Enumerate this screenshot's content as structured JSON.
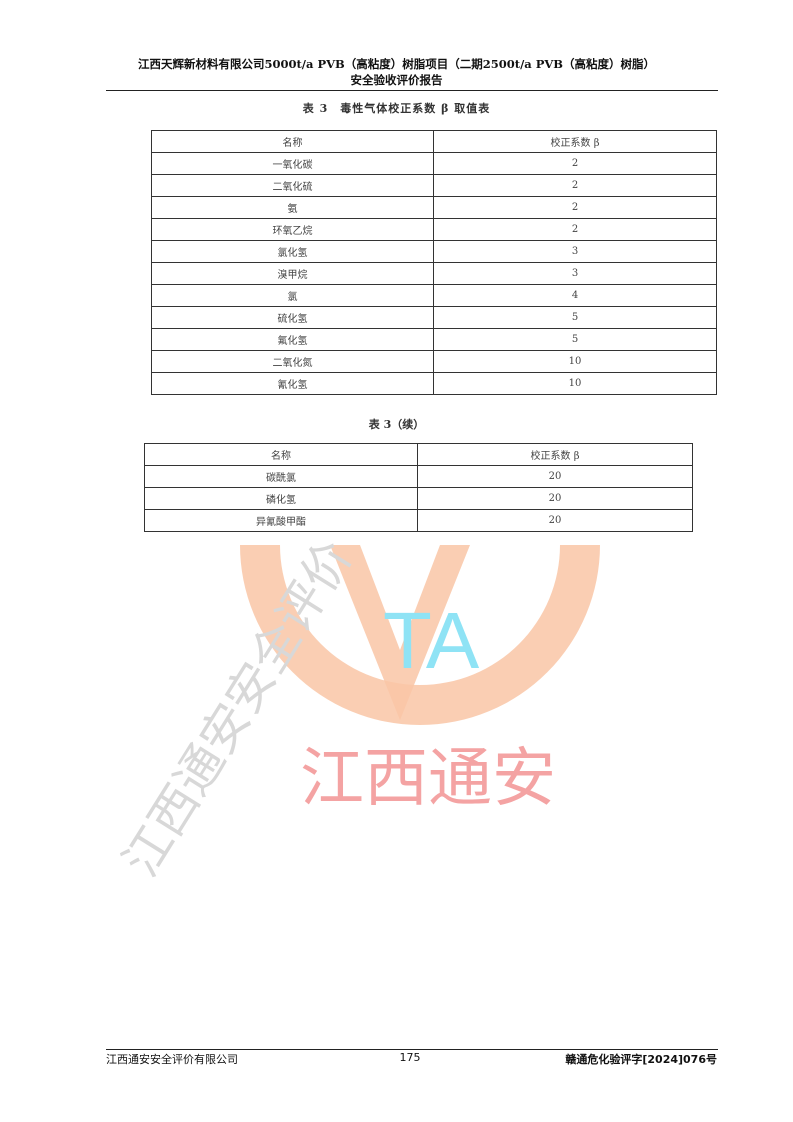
{
  "header": {
    "line1": "江西天辉新材料有限公司5000t/a PVB（高粘度）树脂项目（二期2500t/a PVB（高粘度）树脂）",
    "line2": "安全验收评价报告"
  },
  "table1": {
    "caption": "表 3　毒性气体校正系数 β 取值表",
    "columns": [
      "名称",
      "校正系数 β"
    ],
    "rows": [
      [
        "一氧化碳",
        "2"
      ],
      [
        "二氧化硫",
        "2"
      ],
      [
        "氨",
        "2"
      ],
      [
        "环氧乙烷",
        "2"
      ],
      [
        "氯化氢",
        "3"
      ],
      [
        "溴甲烷",
        "3"
      ],
      [
        "氯",
        "4"
      ],
      [
        "硫化氢",
        "5"
      ],
      [
        "氟化氢",
        "5"
      ],
      [
        "二氧化氮",
        "10"
      ],
      [
        "氰化氢",
        "10"
      ]
    ]
  },
  "table2": {
    "caption": "表 3（续）",
    "columns": [
      "名称",
      "校正系数 β"
    ],
    "rows": [
      [
        "碳酰氯",
        "20"
      ],
      [
        "磷化氢",
        "20"
      ],
      [
        "异氰酸甲酯",
        "20"
      ]
    ]
  },
  "watermark": {
    "logo_letters": "TA",
    "text_red": "江西通安",
    "text_diagonal": "江西通安安全评价",
    "colors": {
      "ring": "#f9c6a6",
      "letters": "#8fe3f5",
      "red": "#f4a3a3",
      "gray": "#d8d8d8"
    }
  },
  "footer": {
    "left": "江西通安安全评价有限公司",
    "page": "175",
    "right": "赣通危化验评字[2024]076号"
  }
}
